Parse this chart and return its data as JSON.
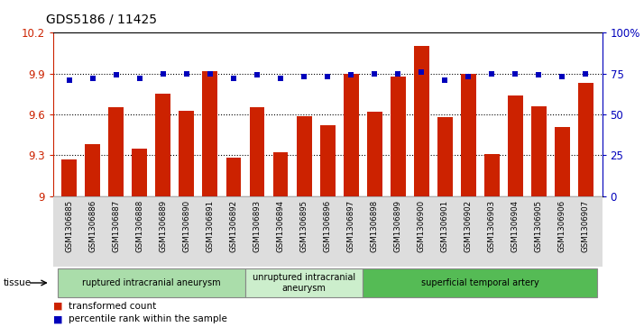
{
  "title": "GDS5186 / 11425",
  "samples": [
    "GSM1306885",
    "GSM1306886",
    "GSM1306887",
    "GSM1306888",
    "GSM1306889",
    "GSM1306890",
    "GSM1306891",
    "GSM1306892",
    "GSM1306893",
    "GSM1306894",
    "GSM1306895",
    "GSM1306896",
    "GSM1306897",
    "GSM1306898",
    "GSM1306899",
    "GSM1306900",
    "GSM1306901",
    "GSM1306902",
    "GSM1306903",
    "GSM1306904",
    "GSM1306905",
    "GSM1306906",
    "GSM1306907"
  ],
  "bar_values": [
    9.27,
    9.38,
    9.65,
    9.35,
    9.75,
    9.63,
    9.92,
    9.28,
    9.65,
    9.32,
    9.59,
    9.52,
    9.9,
    9.62,
    9.88,
    10.1,
    9.58,
    9.9,
    9.31,
    9.74,
    9.66,
    9.51,
    9.83
  ],
  "percentile_values": [
    71,
    72,
    74,
    72,
    75,
    75,
    75,
    72,
    74,
    72,
    73,
    73,
    74,
    75,
    75,
    76,
    71,
    73,
    75,
    75,
    74,
    73,
    75
  ],
  "bar_color": "#cc2200",
  "dot_color": "#0000bb",
  "ylim_left": [
    9.0,
    10.2
  ],
  "ylim_right": [
    0,
    100
  ],
  "yticks_left": [
    9.0,
    9.3,
    9.6,
    9.9,
    10.2
  ],
  "ytick_labels_left": [
    "9",
    "9.3",
    "9.6",
    "9.9",
    "10.2"
  ],
  "yticks_right": [
    0,
    25,
    50,
    75,
    100
  ],
  "ytick_labels_right": [
    "0",
    "25",
    "50",
    "75",
    "100%"
  ],
  "grid_lines": [
    9.3,
    9.6,
    9.9
  ],
  "groups": [
    {
      "label": "ruptured intracranial aneurysm",
      "start": 0,
      "end": 8,
      "color": "#aaddaa"
    },
    {
      "label": "unruptured intracranial\naneurysm",
      "start": 8,
      "end": 13,
      "color": "#cceecc"
    },
    {
      "label": "superficial temporal artery",
      "start": 13,
      "end": 23,
      "color": "#55bb55"
    }
  ],
  "tissue_label": "tissue",
  "legend_bar_label": "transformed count",
  "legend_dot_label": "percentile rank within the sample",
  "xticklabel_bg": "#dddddd",
  "plot_bg_color": "#ffffff"
}
